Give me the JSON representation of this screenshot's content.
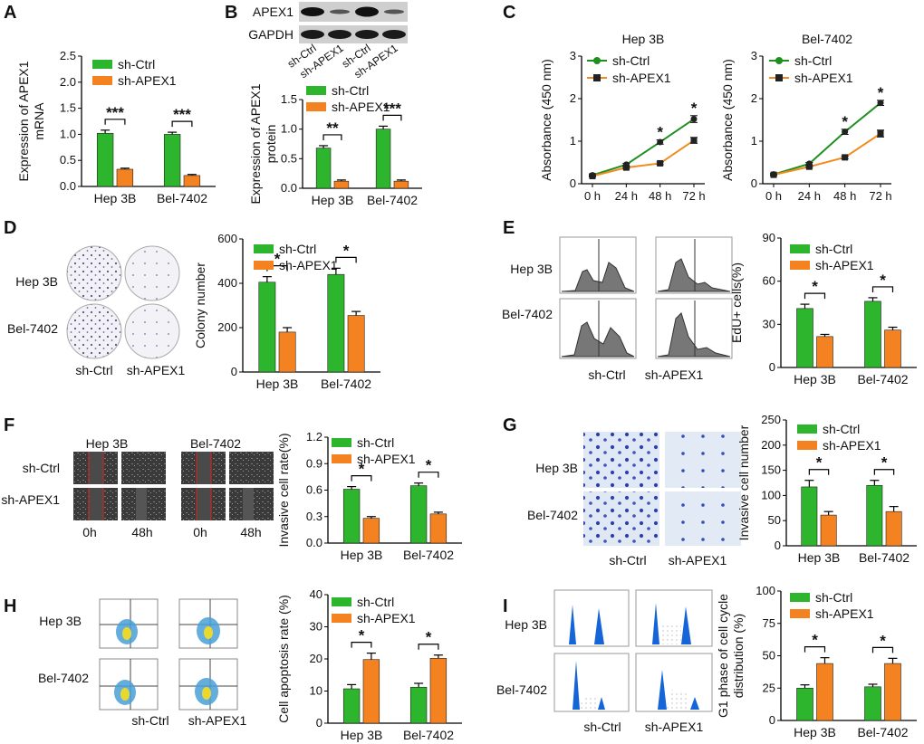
{
  "colors": {
    "ctrl": "#2db52d",
    "apex": "#f58220",
    "ctrl_line": "#1f8f1f",
    "apex_line": "#f28b1e"
  },
  "legend": {
    "ctrl": "sh-Ctrl",
    "apex": "sh-APEX1"
  },
  "panel_labels": [
    "A",
    "B",
    "C",
    "D",
    "E",
    "F",
    "G",
    "H",
    "I"
  ],
  "panelB": {
    "blot_rows": [
      "APEX1",
      "GAPDH"
    ],
    "lane_labels": [
      "sh-Ctrl",
      "sh-APEX1",
      "sh-Ctrl",
      "sh-APEX1"
    ]
  },
  "panelC": {
    "titles": [
      "Hep 3B",
      "Bel-7402"
    ]
  },
  "image_panels": {
    "D": {
      "rows": [
        "Hep 3B",
        "Bel-7402"
      ],
      "cols": [
        "sh-Ctrl",
        "sh-APEX1"
      ]
    },
    "E": {
      "rows": [
        "Hep 3B",
        "Bel-7402"
      ],
      "cols": [
        "sh-Ctrl",
        "sh-APEX1"
      ]
    },
    "F": {
      "groups": [
        "Hep 3B",
        "Bel-7402"
      ],
      "rows": [
        "sh-Ctrl",
        "sh-APEX1"
      ],
      "cols": [
        "0h",
        "48h",
        "0h",
        "48h"
      ]
    },
    "G": {
      "rows": [
        "Hep 3B",
        "Bel-7402"
      ],
      "cols": [
        "sh-Ctrl",
        "sh-APEX1"
      ]
    },
    "H": {
      "rows": [
        "Hep 3B",
        "Bel-7402"
      ],
      "cols": [
        "sh-Ctrl",
        "sh-APEX1"
      ]
    },
    "I": {
      "rows": [
        "Hep 3B",
        "Bel-7402"
      ],
      "cols": [
        "sh-Ctrl",
        "sh-APEX1"
      ]
    }
  },
  "chart_data": [
    {
      "id": "A",
      "type": "bar",
      "categories": [
        "Hep 3B",
        "Bel-7402"
      ],
      "series": [
        {
          "name": "sh-Ctrl",
          "values": [
            1.02,
            1.0
          ],
          "errors": [
            0.06,
            0.04
          ]
        },
        {
          "name": "sh-APEX1",
          "values": [
            0.33,
            0.21
          ],
          "errors": [
            0.02,
            0.02
          ]
        }
      ],
      "ylabel": "Expression of APEX1 mRNA",
      "ylabel_lines": [
        "Expression of APEX1",
        "mRNA"
      ],
      "ylim": [
        0,
        2.5
      ],
      "yticks": [
        0.0,
        0.5,
        1.0,
        1.5,
        2.0,
        2.5
      ],
      "tick_decimals": 1,
      "significance": [
        "***",
        "***"
      ]
    },
    {
      "id": "B",
      "type": "bar",
      "categories": [
        "Hep 3B",
        "Bel-7402"
      ],
      "series": [
        {
          "name": "sh-Ctrl",
          "values": [
            0.68,
            1.0
          ],
          "errors": [
            0.04,
            0.05
          ]
        },
        {
          "name": "sh-APEX1",
          "values": [
            0.12,
            0.12
          ],
          "errors": [
            0.02,
            0.02
          ]
        }
      ],
      "ylabel": "Expression of APEX1 protein",
      "ylabel_lines": [
        "Expression of APEX1",
        "protein"
      ],
      "ylim": [
        0,
        1.5
      ],
      "yticks": [
        0.0,
        0.5,
        1.0,
        1.5
      ],
      "tick_decimals": 1,
      "significance": [
        "**",
        "***"
      ]
    },
    {
      "id": "C1",
      "type": "line",
      "title": "Hep 3B",
      "x": [
        "0 h",
        "24 h",
        "48 h",
        "72 h"
      ],
      "series": [
        {
          "name": "sh-Ctrl",
          "values": [
            0.2,
            0.45,
            0.98,
            1.52
          ],
          "errors": [
            0.02,
            0.03,
            0.05,
            0.08
          ]
        },
        {
          "name": "sh-APEX1",
          "values": [
            0.18,
            0.38,
            0.48,
            1.02
          ],
          "errors": [
            0.02,
            0.02,
            0.03,
            0.07
          ]
        }
      ],
      "ylabel": "Absorbance (450 nm)",
      "ylim": [
        0,
        3
      ],
      "yticks": [
        0,
        1,
        2,
        3
      ],
      "significance": [
        "",
        "",
        "*",
        "*"
      ]
    },
    {
      "id": "C2",
      "type": "line",
      "title": "Bel-7402",
      "x": [
        "0 h",
        "24 h",
        "48 h",
        "72 h"
      ],
      "series": [
        {
          "name": "sh-Ctrl",
          "values": [
            0.22,
            0.47,
            1.22,
            1.9
          ],
          "errors": [
            0.02,
            0.03,
            0.06,
            0.06
          ]
        },
        {
          "name": "sh-APEX1",
          "values": [
            0.21,
            0.4,
            0.62,
            1.18
          ],
          "errors": [
            0.02,
            0.02,
            0.03,
            0.08
          ]
        }
      ],
      "ylabel": "Absorbance (450 nm)",
      "ylim": [
        0,
        3
      ],
      "yticks": [
        0,
        1,
        2,
        3
      ],
      "significance": [
        "",
        "",
        "*",
        "*"
      ]
    },
    {
      "id": "D",
      "type": "bar",
      "categories": [
        "Hep 3B",
        "Bel-7402"
      ],
      "series": [
        {
          "name": "sh-Ctrl",
          "values": [
            405,
            440
          ],
          "errors": [
            25,
            28
          ]
        },
        {
          "name": "sh-APEX1",
          "values": [
            180,
            255
          ],
          "errors": [
            20,
            18
          ]
        }
      ],
      "ylabel": "Colony number",
      "ylim": [
        0,
        600
      ],
      "yticks": [
        0,
        200,
        400,
        600
      ],
      "tick_decimals": 0,
      "significance": [
        "*",
        "*"
      ]
    },
    {
      "id": "E",
      "type": "bar",
      "categories": [
        "Hep 3B",
        "Bel-7402"
      ],
      "series": [
        {
          "name": "sh-Ctrl",
          "values": [
            41,
            46
          ],
          "errors": [
            3,
            2.5
          ]
        },
        {
          "name": "sh-APEX1",
          "values": [
            21.5,
            26
          ],
          "errors": [
            1.5,
            2
          ]
        }
      ],
      "ylabel": "EdU+ cells(%)",
      "ylim": [
        0,
        90
      ],
      "yticks": [
        0,
        30,
        60,
        90
      ],
      "tick_decimals": 0,
      "significance": [
        "*",
        "*"
      ]
    },
    {
      "id": "F",
      "type": "bar",
      "categories": [
        "Hep 3B",
        "Bel-7402"
      ],
      "series": [
        {
          "name": "sh-Ctrl",
          "values": [
            0.61,
            0.65
          ],
          "errors": [
            0.03,
            0.03
          ]
        },
        {
          "name": "sh-APEX1",
          "values": [
            0.28,
            0.33
          ],
          "errors": [
            0.02,
            0.02
          ]
        }
      ],
      "ylabel": "Invasive cell rate(%)",
      "ylim": [
        0,
        1.2
      ],
      "yticks": [
        0.0,
        0.3,
        0.6,
        0.9,
        1.2
      ],
      "tick_decimals": 1,
      "significance": [
        "*",
        "*"
      ]
    },
    {
      "id": "G",
      "type": "bar",
      "categories": [
        "Hep 3B",
        "Bel-7402"
      ],
      "series": [
        {
          "name": "sh-Ctrl",
          "values": [
            117,
            120
          ],
          "errors": [
            13,
            10
          ]
        },
        {
          "name": "sh-APEX1",
          "values": [
            61,
            68
          ],
          "errors": [
            7,
            10
          ]
        }
      ],
      "ylabel": "Invasive cell number",
      "ylim": [
        0,
        250
      ],
      "yticks": [
        0,
        50,
        100,
        150,
        200,
        250
      ],
      "tick_decimals": 0,
      "significance": [
        "*",
        "*"
      ]
    },
    {
      "id": "H",
      "type": "bar",
      "categories": [
        "Hep 3B",
        "Bel-7402"
      ],
      "series": [
        {
          "name": "sh-Ctrl",
          "values": [
            10.7,
            11.2
          ],
          "errors": [
            1.3,
            1.2
          ]
        },
        {
          "name": "sh-APEX1",
          "values": [
            19.8,
            20.2
          ],
          "errors": [
            2.0,
            1.0
          ]
        }
      ],
      "ylabel": "Cell apoptosis rate (%)",
      "ylim": [
        0,
        40
      ],
      "yticks": [
        0,
        10,
        20,
        30,
        40
      ],
      "tick_decimals": 0,
      "significance": [
        "*",
        "*"
      ]
    },
    {
      "id": "I",
      "type": "bar",
      "categories": [
        "Hep 3B",
        "Bel-7402"
      ],
      "series": [
        {
          "name": "sh-Ctrl",
          "values": [
            25,
            26
          ],
          "errors": [
            2.5,
            2
          ]
        },
        {
          "name": "sh-APEX1",
          "values": [
            44,
            44
          ],
          "errors": [
            4.5,
            4
          ]
        }
      ],
      "ylabel": "G1 phase of cell cycle distribution (%)",
      "ylabel_lines": [
        "G1 phase of cell cycle",
        "distribution (%)"
      ],
      "ylim": [
        0,
        100
      ],
      "yticks": [
        0,
        25,
        50,
        75,
        100
      ],
      "tick_decimals": 0,
      "significance": [
        "*",
        "*"
      ]
    }
  ]
}
